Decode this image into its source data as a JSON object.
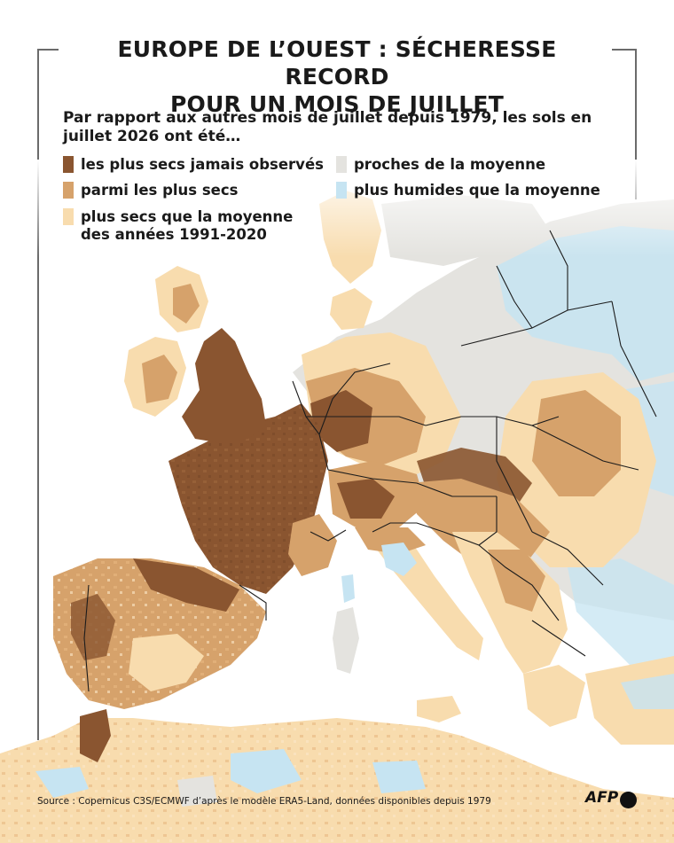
{
  "title": {
    "line1": "EUROPE DE L’OUEST : SÉCHERESSE RECORD",
    "line2": "POUR UN MOIS DE JUILLET"
  },
  "intro": "Par rapport aux autres mois de juillet depuis 1979, les sols en juillet 2026 ont été…",
  "legend": [
    {
      "label": "les plus secs jamais observés",
      "color": "#8a5530"
    },
    {
      "label": "parmi les plus secs",
      "color": "#d6a26b"
    },
    {
      "label": "plus secs que la moyenne des années 1991-2020",
      "line1": "plus secs que la moyenne",
      "line2": "des années 1991-2020",
      "color": "#f8dcae"
    },
    {
      "label": "proches de la moyenne",
      "color": "#e4e3df"
    },
    {
      "label": "plus humides que la moyenne",
      "color": "#c6e4f2"
    }
  ],
  "colors": {
    "sea": "#ffffff",
    "border": "#1c1c1c",
    "frame": "#6b6b6b"
  },
  "source": "Source : Copernicus C3S/ECMWF d’après le modèle ERA5-Land, données disponibles depuis 1979",
  "logo": "AFP"
}
